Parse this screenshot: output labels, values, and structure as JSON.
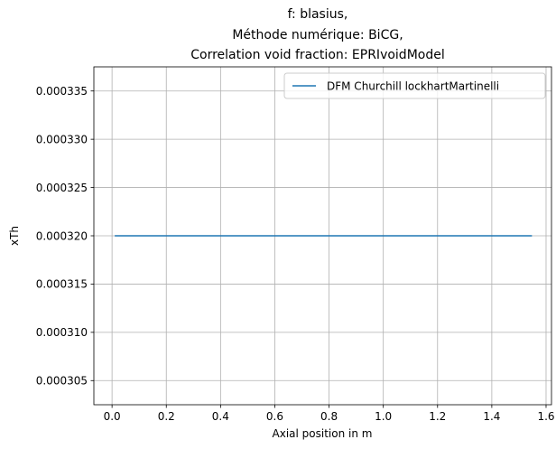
{
  "chart_data": {
    "type": "line",
    "title_lines": [
      "f: blasius,",
      "Méthode numérique: BiCG,",
      "Correlation void fraction: EPRIvoidModel"
    ],
    "xlabel": "Axial position in m",
    "ylabel": "xTh",
    "xlim": [
      -0.067,
      1.62
    ],
    "ylim": [
      0.0003025,
      0.0003375
    ],
    "x_ticks": [
      0.0,
      0.2,
      0.4,
      0.6,
      0.8,
      1.0,
      1.2,
      1.4,
      1.6
    ],
    "x_tick_labels": [
      "0.0",
      "0.2",
      "0.4",
      "0.6",
      "0.8",
      "1.0",
      "1.2",
      "1.4",
      "1.6"
    ],
    "y_ticks": [
      0.000305,
      0.00031,
      0.000315,
      0.00032,
      0.000325,
      0.00033,
      0.000335
    ],
    "y_tick_labels": [
      "0.000305",
      "0.000310",
      "0.000315",
      "0.000320",
      "0.000325",
      "0.000330",
      "0.000335"
    ],
    "grid": true,
    "legend_position": "upper right",
    "series": [
      {
        "name": "DFM Churchill lockhartMartinelli",
        "color": "#1f77b4",
        "x": [
          0.01,
          1.548
        ],
        "y": [
          0.00032,
          0.00032
        ]
      }
    ]
  }
}
